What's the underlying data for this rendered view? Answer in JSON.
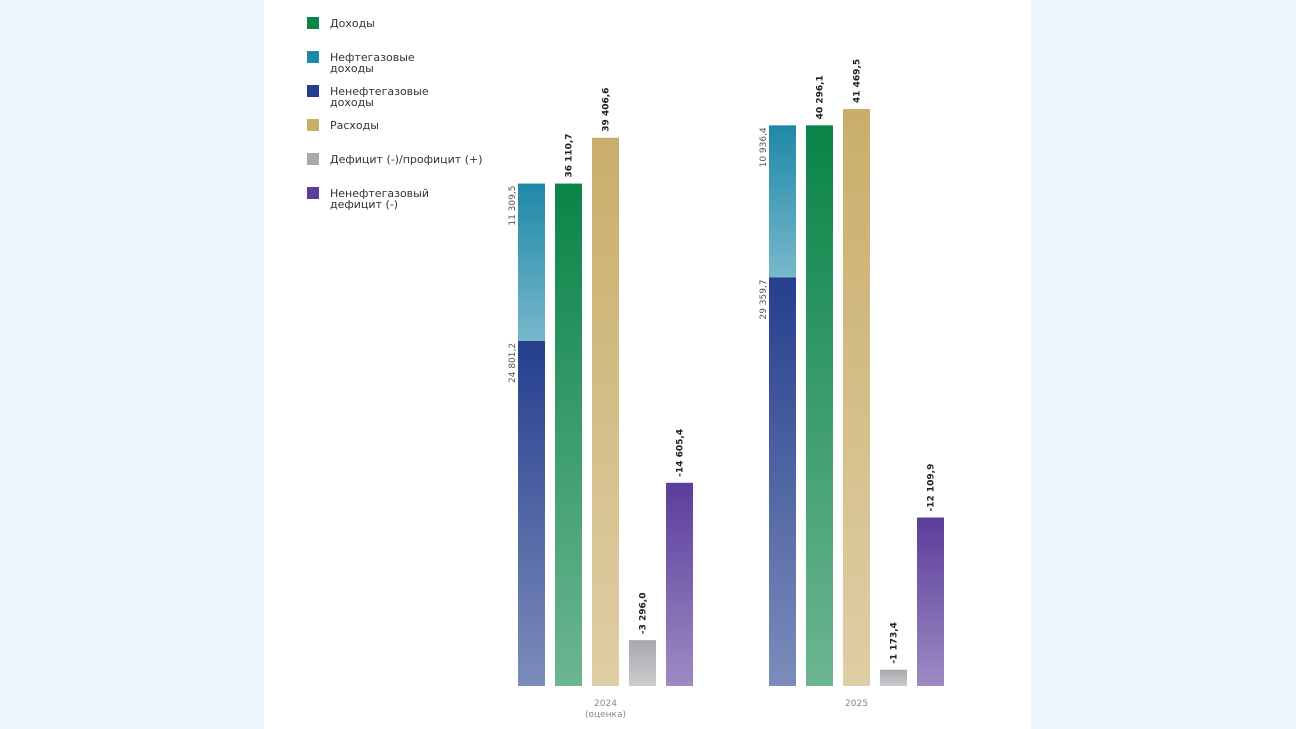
{
  "chart_data": {
    "type": "bar",
    "categories": [
      "2024 (оценка)",
      "2025"
    ],
    "series": [
      {
        "name": "Доходы",
        "color": "#0a8448",
        "values": [
          36110.7,
          40296.1
        ],
        "value_labels": [
          "36 110,7",
          "40 296,1"
        ]
      },
      {
        "name": "Нефтегазовые доходы",
        "color": "#1e88a8",
        "stacked": true,
        "values": [
          11309.5,
          10936.4
        ],
        "value_labels": [
          "11 309,5",
          "10 936,4"
        ]
      },
      {
        "name": "Ненефтегазовые доходы",
        "color": "#253f8e",
        "stacked": true,
        "values": [
          24801.2,
          29359.7
        ],
        "value_labels": [
          "24 801,2",
          "29 359,7"
        ]
      },
      {
        "name": "Расходы",
        "color": "#c9ae6a",
        "values": [
          39406.6,
          41469.5
        ],
        "value_labels": [
          "39 406,6",
          "41 469,5"
        ]
      },
      {
        "name": "Дефицит (-)/профицит (+)",
        "color": "#a9a8ad",
        "values": [
          -3296.0,
          -1173.4
        ],
        "value_labels": [
          "-3 296,0",
          "-1 173,4"
        ]
      },
      {
        "name": "Ненефтегазовый дефицит (-)",
        "color": "#5b3d9b",
        "values": [
          -14605.4,
          -12109.9
        ],
        "value_labels": [
          "-14 605,4",
          "-12 109,9"
        ]
      }
    ]
  }
}
